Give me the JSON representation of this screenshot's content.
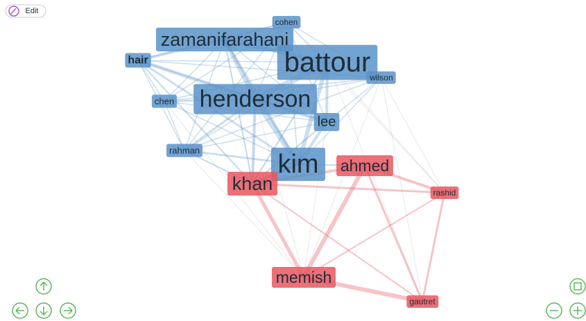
{
  "edit_button": {
    "label": "Edit"
  },
  "nodes": [
    {
      "label": "cohen",
      "color": "#5b93c8"
    },
    {
      "label": "zamanifarahani",
      "color": "#5b93c8"
    },
    {
      "label": "battour",
      "color": "#5b93c8"
    },
    {
      "label": "hair",
      "color": "#5b93c8"
    },
    {
      "label": "wilson",
      "color": "#5b93c8"
    },
    {
      "label": "chen",
      "color": "#5b93c8"
    },
    {
      "label": "henderson",
      "color": "#5b93c8"
    },
    {
      "label": "lee",
      "color": "#5b93c8"
    },
    {
      "label": "rahman",
      "color": "#5b93c8"
    },
    {
      "label": "kim",
      "color": "#5b93c8"
    },
    {
      "label": "ahmed",
      "color": "#e8575f"
    },
    {
      "label": "khan",
      "color": "#e8575f"
    },
    {
      "label": "rashid",
      "color": "#e8575f"
    },
    {
      "label": "memish",
      "color": "#e8575f"
    },
    {
      "label": "gautret",
      "color": "#e8575f"
    }
  ]
}
